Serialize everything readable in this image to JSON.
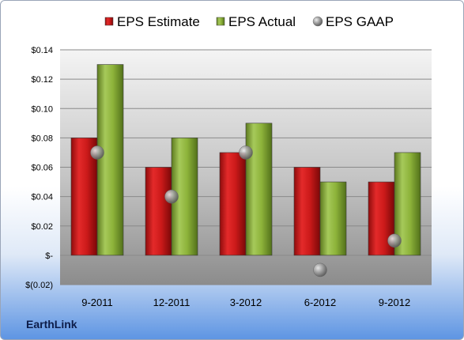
{
  "footer": {
    "company": "EarthLink"
  },
  "chart_data": {
    "type": "bar",
    "title": "",
    "xlabel": "",
    "ylabel": "",
    "categories": [
      "9-2011",
      "12-2011",
      "3-2012",
      "6-2012",
      "9-2012"
    ],
    "series": [
      {
        "name": "EPS Estimate",
        "kind": "bar",
        "color": "#d11d1d",
        "values": [
          0.08,
          0.06,
          0.07,
          0.06,
          0.05
        ]
      },
      {
        "name": "EPS Actual",
        "kind": "bar",
        "color": "#8db33a",
        "values": [
          0.13,
          0.08,
          0.09,
          0.05,
          0.07
        ]
      },
      {
        "name": "EPS GAAP",
        "kind": "marker",
        "color": "#9a9a9a",
        "values": [
          0.07,
          0.04,
          0.07,
          -0.01,
          0.01
        ]
      }
    ],
    "ylim": [
      -0.02,
      0.14
    ],
    "yticks": [
      -0.02,
      0,
      0.02,
      0.04,
      0.06,
      0.08,
      0.1,
      0.12,
      0.14
    ],
    "ytick_labels": [
      "$(0.02)",
      "$-",
      "$0.02",
      "$0.04",
      "$0.06",
      "$0.08",
      "$0.10",
      "$0.12",
      "$0.14"
    ],
    "grid": true,
    "legend_position": "top"
  }
}
